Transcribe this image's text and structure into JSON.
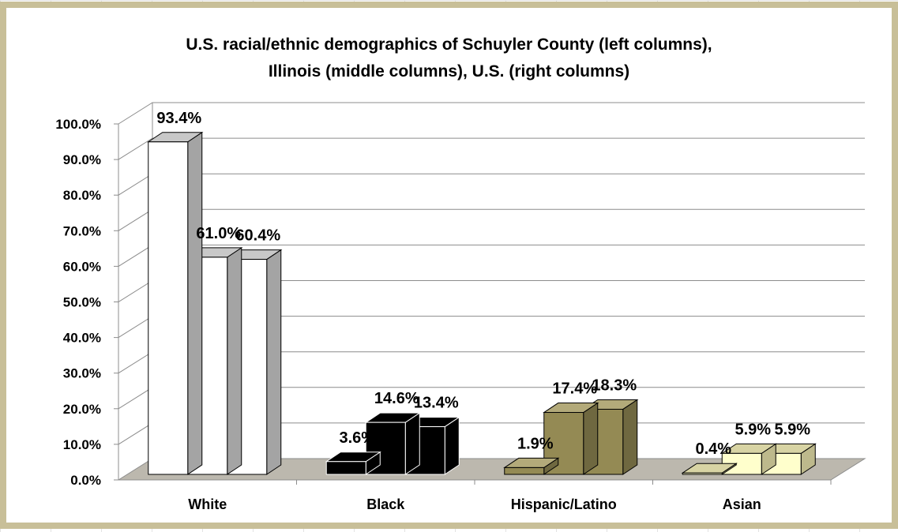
{
  "chart_data": {
    "type": "bar",
    "title_line1": "U.S. racial/ethnic demographics of Schuyler County (left columns),",
    "title_line2": "Illinois (middle columns), U.S.  (right columns)",
    "categories": [
      "White",
      "Black",
      "Hispanic/Latino",
      "Asian"
    ],
    "series": [
      {
        "values": [
          93.4,
          3.6,
          1.9,
          0.4
        ]
      },
      {
        "values": [
          61.0,
          14.6,
          17.4,
          5.9
        ]
      },
      {
        "values": [
          60.4,
          13.4,
          18.3,
          5.9
        ]
      }
    ],
    "data_labels": [
      [
        "93.4%",
        "61.0%",
        "60.4%"
      ],
      [
        "3.6%",
        "14.6%",
        "13.4%"
      ],
      [
        "1.9%",
        "17.4%",
        "18.3%"
      ],
      [
        "0.4%",
        "5.9%",
        "5.9%"
      ]
    ],
    "y_ticks": [
      "0.0%",
      "10.0%",
      "20.0%",
      "30.0%",
      "40.0%",
      "50.0%",
      "60.0%",
      "70.0%",
      "80.0%",
      "90.0%",
      "100.0%"
    ],
    "ylim": [
      0,
      100
    ],
    "grid": true,
    "legend": "none",
    "category_colors": {
      "White": {
        "front": "#ffffff",
        "top": "#c8c8c8",
        "side": "#a4a4a4"
      },
      "Black": {
        "front": "#000000",
        "top": "#000000",
        "side": "#000000"
      },
      "Hispanic/Latino": {
        "front": "#948a54",
        "top": "#b3aa7a",
        "side": "#6f6840"
      },
      "Asian": {
        "front": "#ffffcc",
        "top": "#d8d4a4",
        "side": "#bdb98c"
      }
    },
    "floor_color": "#bcb8ae",
    "frame_color": "#c8bf98"
  }
}
